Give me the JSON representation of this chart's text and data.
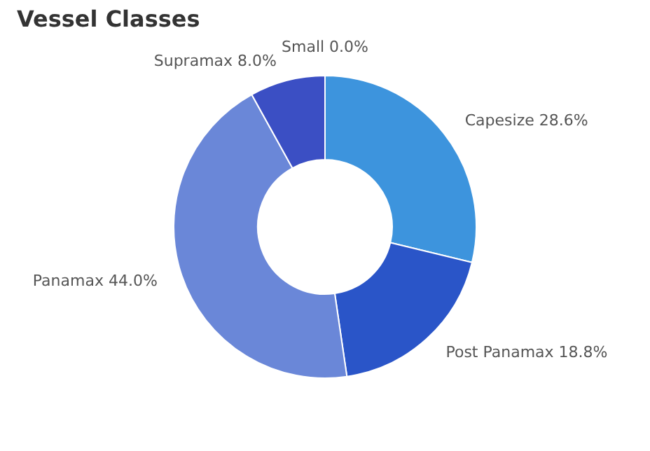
{
  "chart_data": {
    "type": "donut",
    "title": "Vessel Classes",
    "categories": [
      "Capesize",
      "Post Panamax",
      "Panamax",
      "Supramax",
      "Small"
    ],
    "values": [
      28.6,
      18.8,
      44.0,
      8.0,
      0.0
    ],
    "value_labels": [
      "28.6%",
      "18.8%",
      "44.0%",
      "8.0%",
      "0.0%"
    ],
    "colors": [
      "#3d94dd",
      "#2a55c8",
      "#6a87d8",
      "#3b4fc4",
      "#1a2a80"
    ],
    "legend": false
  }
}
